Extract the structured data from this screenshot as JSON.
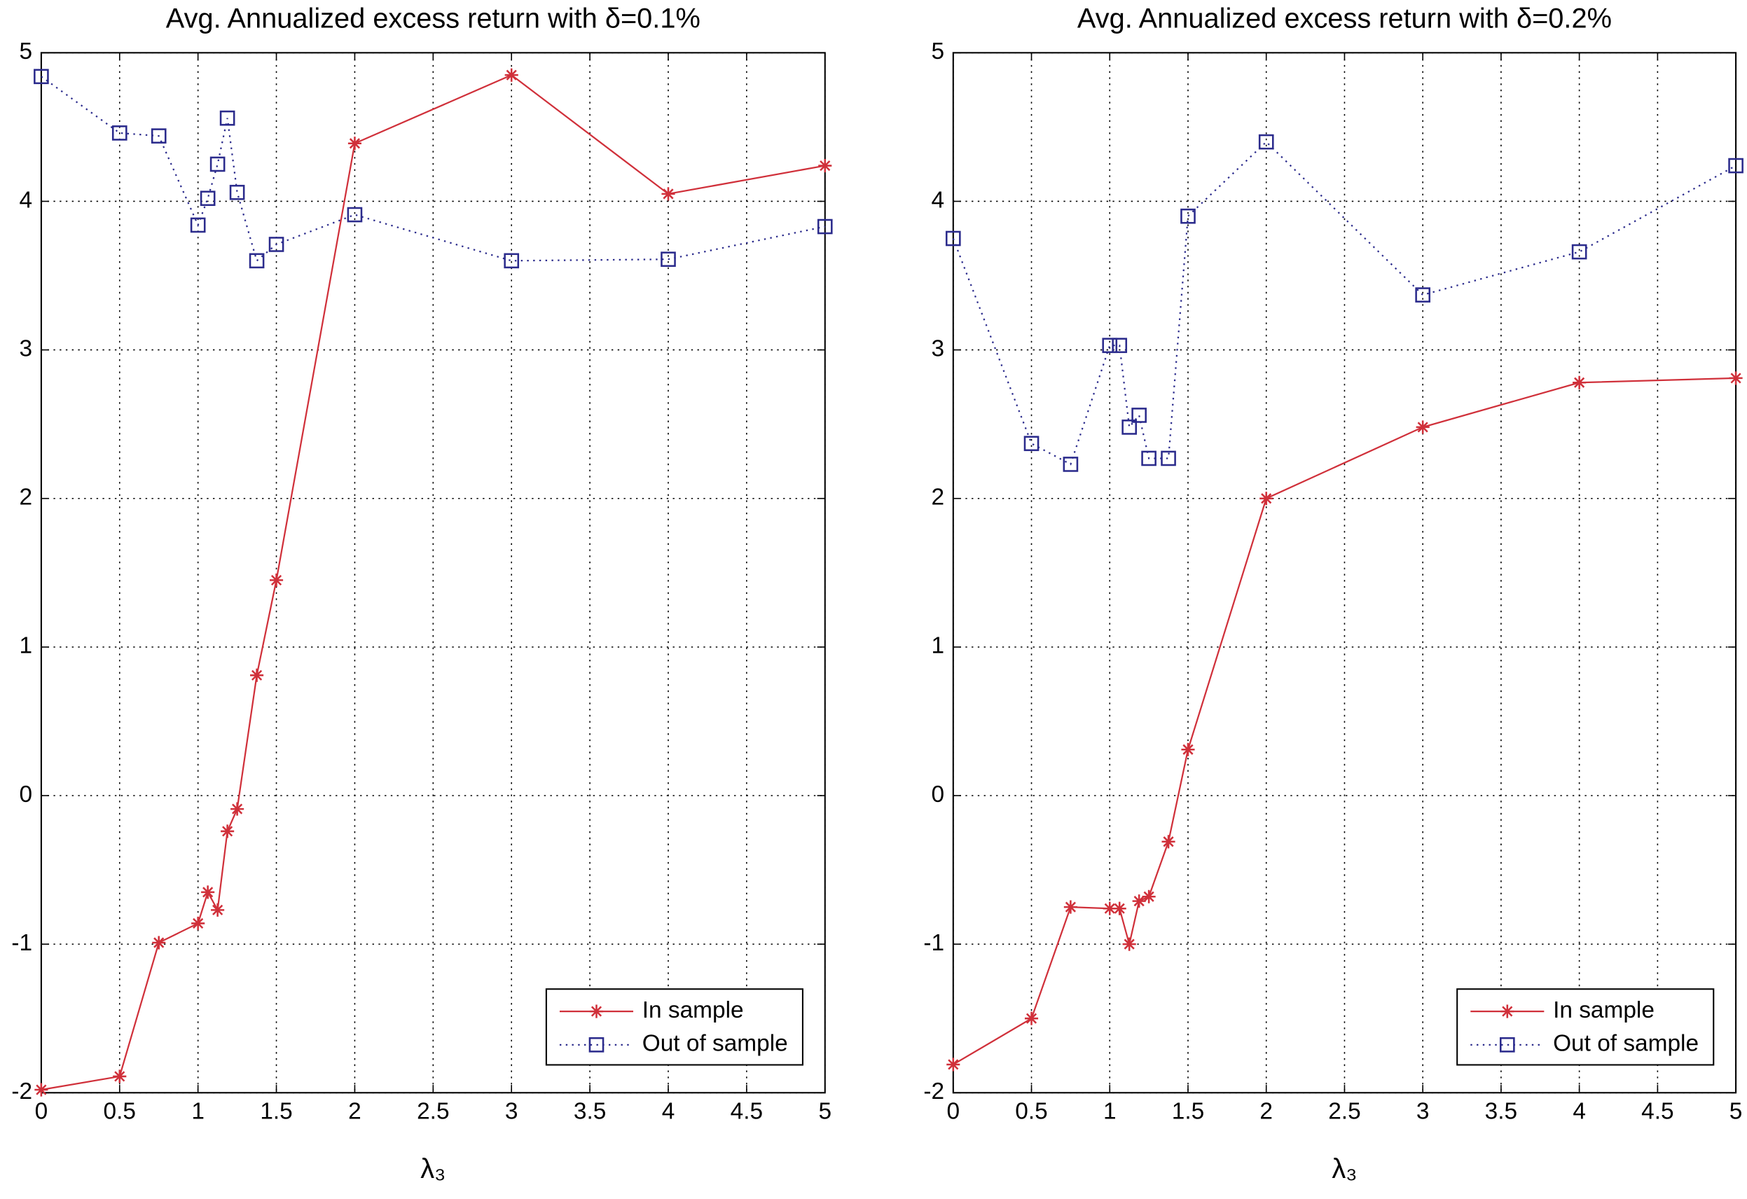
{
  "chart_data": [
    {
      "type": "line",
      "title": "Avg. Annualized excess return with δ=0.1%",
      "xlabel": "λ₃",
      "x": [
        0,
        0.5,
        0.75,
        1,
        1.0625,
        1.125,
        1.1875,
        1.25,
        1.375,
        1.5,
        2,
        3,
        4,
        5
      ],
      "series": [
        {
          "name": "In sample",
          "color": "#d0303a",
          "linestyle": "solid",
          "marker": "star",
          "values": [
            -1.98,
            -1.89,
            -0.99,
            -0.86,
            -0.65,
            -0.77,
            -0.24,
            -0.09,
            0.81,
            1.45,
            4.39,
            4.85,
            4.05,
            4.24
          ]
        },
        {
          "name": "Out of sample",
          "color": "#2b2b8c",
          "linestyle": "dotted",
          "marker": "square",
          "values": [
            4.84,
            4.46,
            4.44,
            3.84,
            4.02,
            4.25,
            4.56,
            4.06,
            3.6,
            3.71,
            3.91,
            3.6,
            3.61,
            3.83
          ]
        }
      ],
      "xlim": [
        0,
        5
      ],
      "ylim": [
        -2,
        5
      ],
      "xticks": [
        0,
        0.5,
        1,
        1.5,
        2,
        2.5,
        3,
        3.5,
        4,
        4.5,
        5
      ],
      "yticks": [
        -2,
        -1,
        0,
        1,
        2,
        3,
        4,
        5
      ],
      "grid": true,
      "legend": "lower right"
    },
    {
      "type": "line",
      "title": "Avg. Annualized excess return with δ=0.2%",
      "xlabel": "λ₃",
      "x": [
        0,
        0.5,
        0.75,
        1,
        1.0625,
        1.125,
        1.1875,
        1.25,
        1.375,
        1.5,
        2,
        3,
        4,
        5
      ],
      "series": [
        {
          "name": "In sample",
          "color": "#d0303a",
          "linestyle": "solid",
          "marker": "star",
          "values": [
            -1.81,
            -1.5,
            -0.75,
            -0.76,
            -0.76,
            -1.0,
            -0.71,
            -0.68,
            -0.31,
            0.31,
            2.0,
            2.48,
            2.78,
            2.81
          ]
        },
        {
          "name": "Out of sample",
          "color": "#2b2b8c",
          "linestyle": "dotted",
          "marker": "square",
          "values": [
            3.75,
            2.37,
            2.23,
            3.03,
            3.03,
            2.48,
            2.56,
            2.27,
            2.27,
            3.9,
            4.4,
            3.37,
            3.66,
            4.24
          ]
        }
      ],
      "xlim": [
        0,
        5
      ],
      "ylim": [
        -2,
        5
      ],
      "xticks": [
        0,
        0.5,
        1,
        1.5,
        2,
        2.5,
        3,
        3.5,
        4,
        4.5,
        5
      ],
      "yticks": [
        -2,
        -1,
        0,
        1,
        2,
        3,
        4,
        5
      ],
      "grid": true,
      "legend": "lower right"
    }
  ]
}
